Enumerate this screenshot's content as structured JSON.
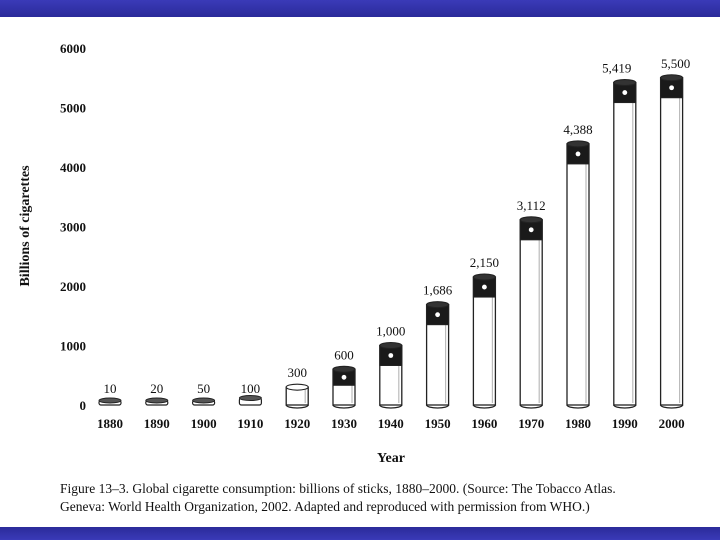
{
  "chart_data": {
    "type": "bar",
    "title": "",
    "xlabel": "Year",
    "ylabel": "Billions of cigarettes",
    "ylim": [
      0,
      6000
    ],
    "yticks": [
      0,
      1000,
      2000,
      3000,
      4000,
      5000,
      6000
    ],
    "categories": [
      "1880",
      "1890",
      "1900",
      "1910",
      "1920",
      "1930",
      "1940",
      "1950",
      "1960",
      "1970",
      "1980",
      "1990",
      "2000"
    ],
    "values": [
      10,
      20,
      50,
      100,
      300,
      600,
      1000,
      1686,
      2150,
      3112,
      4388,
      5419,
      5500
    ],
    "value_labels": [
      "10",
      "20",
      "50",
      "100",
      "300",
      "600",
      "1,000",
      "1,686",
      "2,150",
      "3,112",
      "4,388",
      "5,419",
      "5,500"
    ],
    "grid": false,
    "legend": "none"
  },
  "caption": {
    "line1": "Figure 13–3.  Global cigarette consumption: billions of sticks, 1880–2000. (Source: The Tobacco Atlas.",
    "line2": "Geneva: World Health Organization, 2002. Adapted and reproduced with permission from WHO.)"
  },
  "colors": {
    "band": "#2f2fa6",
    "cigarette_paper": "#ffffff",
    "ash_tip": "#1a1a1a",
    "outline": "#222222"
  }
}
